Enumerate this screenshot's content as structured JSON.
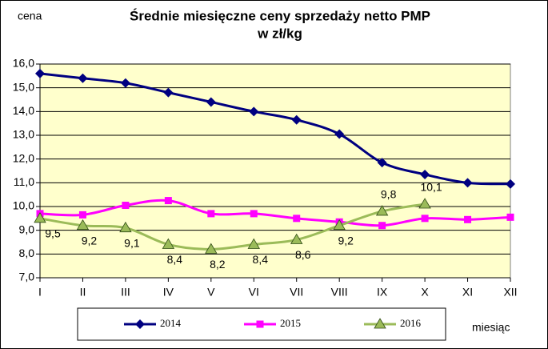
{
  "chart_data": {
    "type": "line",
    "title": "Średnie miesięczne ceny sprzedaży netto PMP",
    "subtitle": "w zł/kg",
    "y_label": "cena",
    "x_label": "miesiąc",
    "categories": [
      "I",
      "II",
      "III",
      "IV",
      "V",
      "VI",
      "VII",
      "VIII",
      "IX",
      "X",
      "XI",
      "XII"
    ],
    "ylim": [
      7,
      16
    ],
    "yticks": [
      {
        "value": 7,
        "label": "7,0"
      },
      {
        "value": 8,
        "label": "8,0"
      },
      {
        "value": 9,
        "label": "9,0"
      },
      {
        "value": 10,
        "label": "10,0"
      },
      {
        "value": 11,
        "label": "11,0"
      },
      {
        "value": 12,
        "label": "12,0"
      },
      {
        "value": 13,
        "label": "13,0"
      },
      {
        "value": 14,
        "label": "14,0"
      },
      {
        "value": 15,
        "label": "15,0"
      },
      {
        "value": 16,
        "label": "16,0"
      }
    ],
    "grid": true,
    "series": [
      {
        "name": "2014",
        "color": "#000080",
        "marker": "diamond",
        "values": [
          15.6,
          15.4,
          15.2,
          14.8,
          14.4,
          14.0,
          13.65,
          13.05,
          11.85,
          11.35,
          11.0,
          10.95
        ]
      },
      {
        "name": "2015",
        "color": "#ff00ff",
        "marker": "square",
        "values": [
          9.7,
          9.65,
          10.05,
          10.25,
          9.7,
          9.7,
          9.5,
          9.35,
          9.2,
          9.5,
          9.45,
          9.55
        ]
      },
      {
        "name": "2016",
        "color": "#9bbb59",
        "marker": "triangle",
        "values": [
          9.5,
          9.2,
          9.1,
          8.4,
          8.2,
          8.4,
          8.6,
          9.2,
          9.8,
          10.1,
          null,
          null
        ],
        "value_labels": [
          "9,5",
          "9,2",
          "9,1",
          "8,4",
          "8,2",
          "8,4",
          "8,6",
          "9,2",
          "9,8",
          "10,1",
          null,
          null
        ]
      }
    ]
  }
}
